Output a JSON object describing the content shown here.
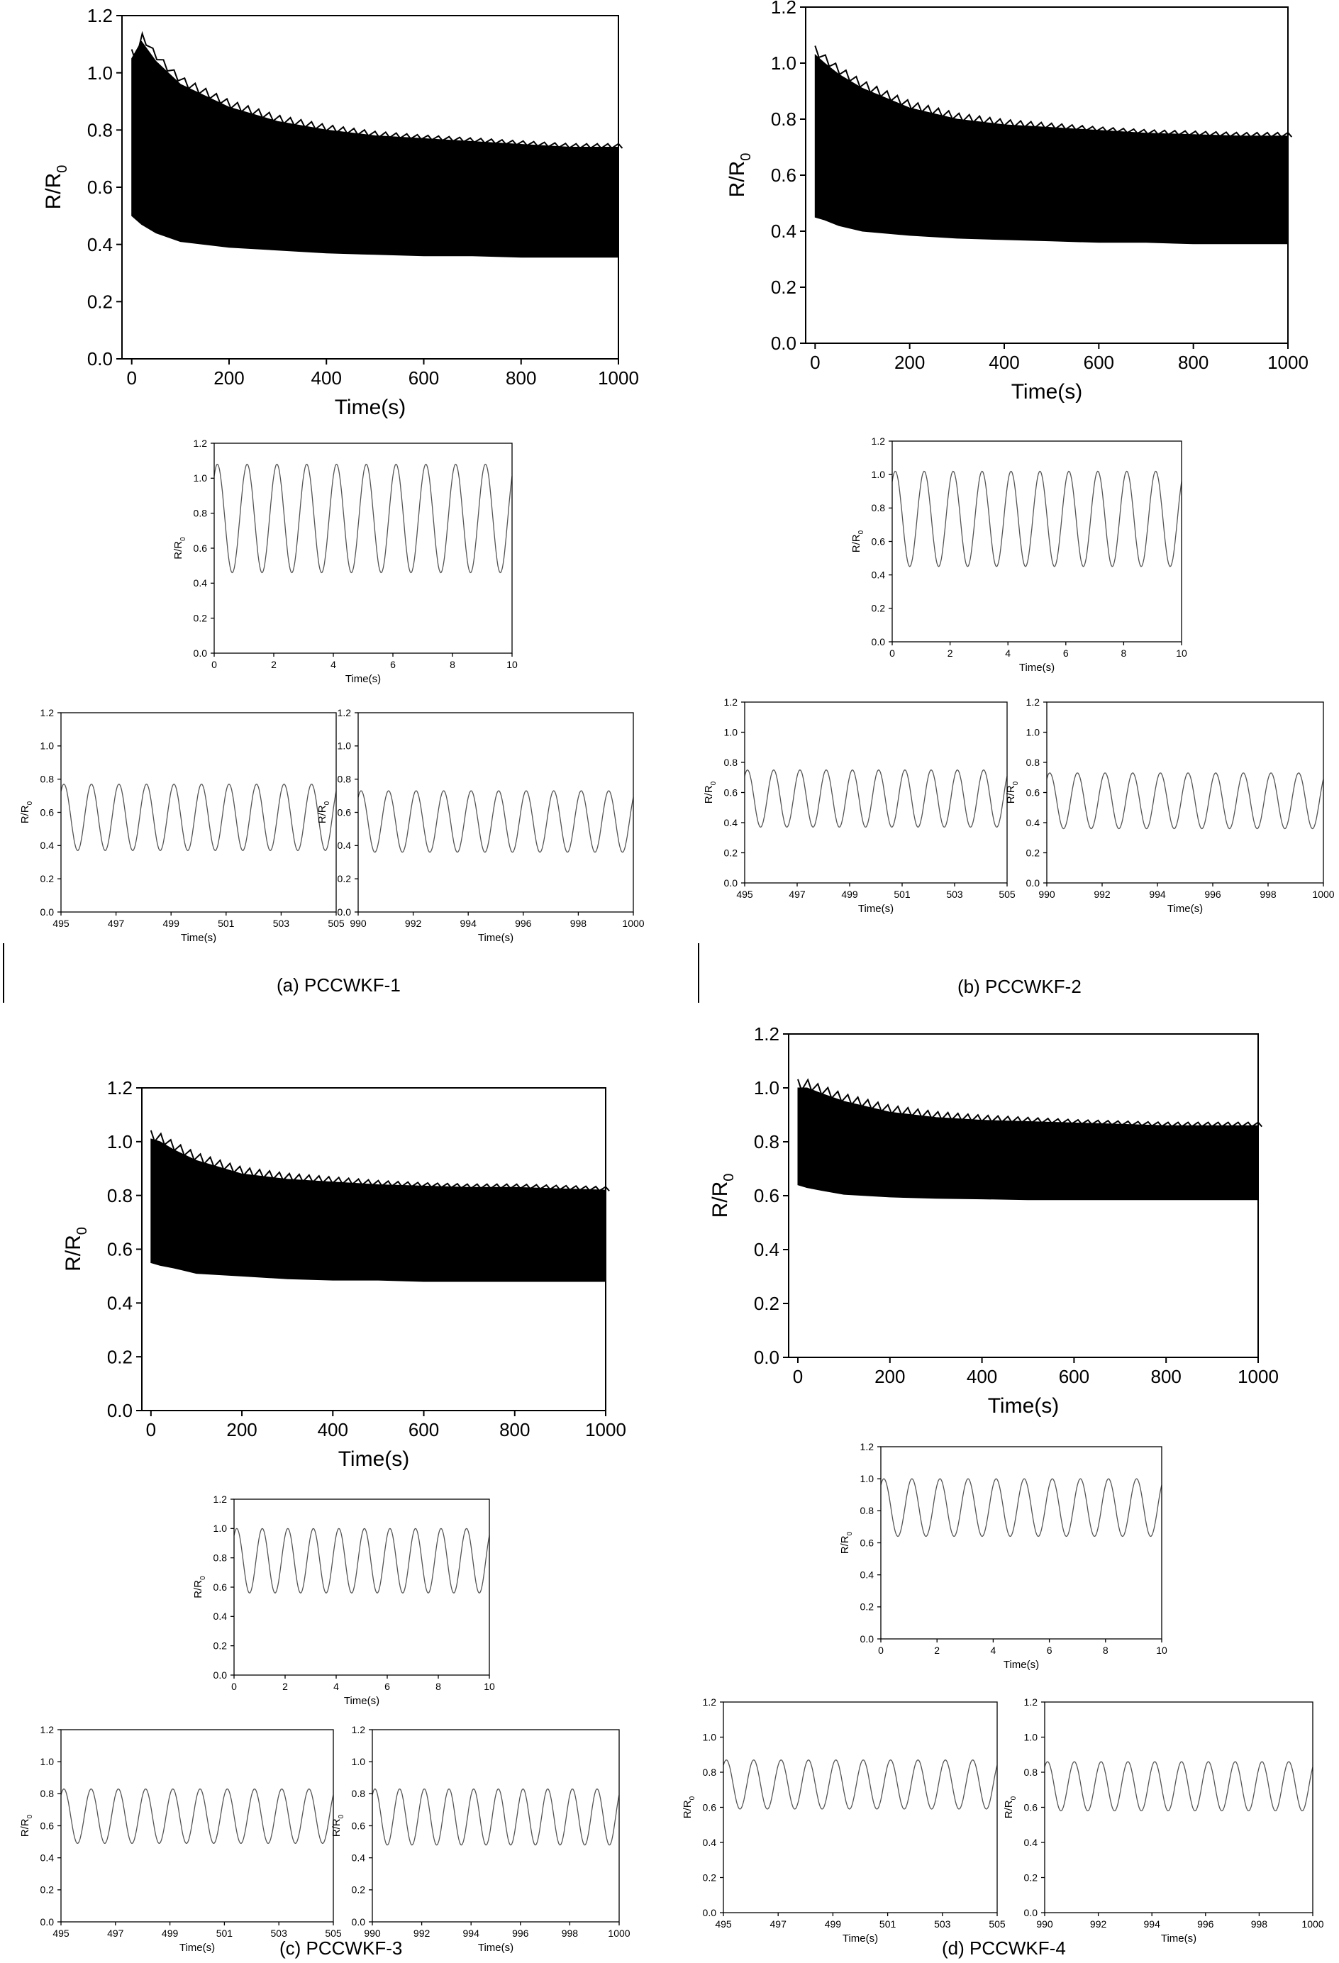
{
  "captions": {
    "a": "(a) PCCWKF-1",
    "b": "(b) PCCWKF-2",
    "c": "(c) PCCWKF-3",
    "d": "(d) PCCWKF-4"
  },
  "chart_data": [
    {
      "id": "a-main",
      "type": "line",
      "panel": "a",
      "fill_envelope": true,
      "xlabel": "Time(s)",
      "ylabel": "R/R0",
      "xlim": [
        -20,
        1000
      ],
      "ylim": [
        0,
        1.2
      ],
      "xticks": [
        0,
        200,
        400,
        600,
        800,
        1000
      ],
      "xtick_labels": [
        "0",
        "200",
        "400",
        "600",
        "800",
        "1000"
      ],
      "yticks": [
        0,
        0.2,
        0.4,
        0.6,
        0.8,
        1.0,
        1.2
      ],
      "ytick_labels": [
        "0.0",
        "0.2",
        "0.4",
        "0.6",
        "0.8",
        "1.0",
        "1.2"
      ],
      "x": [
        0,
        20,
        50,
        100,
        200,
        300,
        400,
        500,
        600,
        700,
        800,
        900,
        1000
      ],
      "series": [
        {
          "role": "upper",
          "values": [
            1.05,
            1.11,
            1.04,
            0.96,
            0.88,
            0.83,
            0.8,
            0.78,
            0.77,
            0.76,
            0.75,
            0.74,
            0.74
          ]
        },
        {
          "role": "lower",
          "values": [
            0.5,
            0.47,
            0.44,
            0.41,
            0.39,
            0.38,
            0.37,
            0.365,
            0.36,
            0.36,
            0.355,
            0.355,
            0.355
          ]
        }
      ]
    },
    {
      "id": "a-zoom-start",
      "type": "line",
      "panel": "a",
      "periodic": true,
      "xlabel": "Time(s)",
      "ylabel": "R/R0",
      "xlim": [
        0,
        10
      ],
      "ylim": [
        0,
        1.2
      ],
      "xticks": [
        0,
        2,
        4,
        6,
        8,
        10
      ],
      "xtick_labels": [
        "0",
        "2",
        "4",
        "6",
        "8",
        "10"
      ],
      "yticks": [
        0,
        0.2,
        0.4,
        0.6,
        0.8,
        1.0,
        1.2
      ],
      "ytick_labels": [
        "0.0",
        "0.2",
        "0.4",
        "0.6",
        "0.8",
        "1.0",
        "1.2"
      ],
      "cycles": 10,
      "min": 0.46,
      "max": 1.08
    },
    {
      "id": "a-zoom-mid",
      "type": "line",
      "panel": "a",
      "periodic": true,
      "xlabel": "Time(s)",
      "ylabel": "R/R0",
      "xlim": [
        495,
        505
      ],
      "ylim": [
        0,
        1.2
      ],
      "xticks": [
        495,
        497,
        499,
        501,
        503,
        505
      ],
      "xtick_labels": [
        "495",
        "497",
        "499",
        "501",
        "503",
        "505"
      ],
      "yticks": [
        0,
        0.2,
        0.4,
        0.6,
        0.8,
        1.0,
        1.2
      ],
      "ytick_labels": [
        "0.0",
        "0.2",
        "0.4",
        "0.6",
        "0.8",
        "1.0",
        "1.2"
      ],
      "cycles": 10,
      "min": 0.37,
      "max": 0.77
    },
    {
      "id": "a-zoom-end",
      "type": "line",
      "panel": "a",
      "periodic": true,
      "xlabel": "Time(s)",
      "ylabel": "R/R0",
      "xlim": [
        990,
        1000
      ],
      "ylim": [
        0,
        1.2
      ],
      "xticks": [
        990,
        992,
        994,
        996,
        998,
        1000
      ],
      "xtick_labels": [
        "990",
        "992",
        "994",
        "996",
        "998",
        "1000"
      ],
      "yticks": [
        0,
        0.2,
        0.4,
        0.6,
        0.8,
        1.0,
        1.2
      ],
      "ytick_labels": [
        "0.0",
        "0.2",
        "0.4",
        "0.6",
        "0.8",
        "1.0",
        "1.2"
      ],
      "cycles": 10,
      "min": 0.36,
      "max": 0.73
    },
    {
      "id": "b-main",
      "type": "line",
      "panel": "b",
      "fill_envelope": true,
      "xlabel": "Time(s)",
      "ylabel": "R/R0",
      "xlim": [
        -20,
        1000
      ],
      "ylim": [
        0,
        1.2
      ],
      "xticks": [
        0,
        200,
        400,
        600,
        800,
        1000
      ],
      "xtick_labels": [
        "0",
        "200",
        "400",
        "600",
        "800",
        "1000"
      ],
      "yticks": [
        0,
        0.2,
        0.4,
        0.6,
        0.8,
        1.0,
        1.2
      ],
      "ytick_labels": [
        "0.0",
        "0.2",
        "0.4",
        "0.6",
        "0.8",
        "1.0",
        "1.2"
      ],
      "x": [
        0,
        20,
        50,
        100,
        200,
        300,
        400,
        500,
        600,
        700,
        800,
        900,
        1000
      ],
      "series": [
        {
          "role": "upper",
          "values": [
            1.03,
            1.0,
            0.96,
            0.91,
            0.84,
            0.8,
            0.78,
            0.77,
            0.76,
            0.75,
            0.745,
            0.74,
            0.74
          ]
        },
        {
          "role": "lower",
          "values": [
            0.45,
            0.44,
            0.42,
            0.4,
            0.385,
            0.375,
            0.37,
            0.365,
            0.36,
            0.36,
            0.355,
            0.355,
            0.355
          ]
        }
      ]
    },
    {
      "id": "b-zoom-start",
      "type": "line",
      "panel": "b",
      "periodic": true,
      "xlabel": "Time(s)",
      "ylabel": "R/R0",
      "xlim": [
        0,
        10
      ],
      "ylim": [
        0,
        1.2
      ],
      "xticks": [
        0,
        2,
        4,
        6,
        8,
        10
      ],
      "xtick_labels": [
        "0",
        "2",
        "4",
        "6",
        "8",
        "10"
      ],
      "yticks": [
        0,
        0.2,
        0.4,
        0.6,
        0.8,
        1.0,
        1.2
      ],
      "ytick_labels": [
        "0.0",
        "0.2",
        "0.4",
        "0.6",
        "0.8",
        "1.0",
        "1.2"
      ],
      "cycles": 10,
      "min": 0.45,
      "max": 1.02
    },
    {
      "id": "b-zoom-mid",
      "type": "line",
      "panel": "b",
      "periodic": true,
      "xlabel": "Time(s)",
      "ylabel": "R/R0",
      "xlim": [
        495,
        505
      ],
      "ylim": [
        0,
        1.2
      ],
      "xticks": [
        495,
        497,
        499,
        501,
        503,
        505
      ],
      "xtick_labels": [
        "495",
        "497",
        "499",
        "501",
        "503",
        "505"
      ],
      "yticks": [
        0,
        0.2,
        0.4,
        0.6,
        0.8,
        1.0,
        1.2
      ],
      "ytick_labels": [
        "0.0",
        "0.2",
        "0.4",
        "0.6",
        "0.8",
        "1.0",
        "1.2"
      ],
      "cycles": 10,
      "min": 0.37,
      "max": 0.75
    },
    {
      "id": "b-zoom-end",
      "type": "line",
      "panel": "b",
      "periodic": true,
      "xlabel": "Time(s)",
      "ylabel": "R/R0",
      "xlim": [
        990,
        1000
      ],
      "ylim": [
        0,
        1.2
      ],
      "xticks": [
        990,
        992,
        994,
        996,
        998,
        1000
      ],
      "xtick_labels": [
        "990",
        "992",
        "994",
        "996",
        "998",
        "1000"
      ],
      "yticks": [
        0,
        0.2,
        0.4,
        0.6,
        0.8,
        1.0,
        1.2
      ],
      "ytick_labels": [
        "0.0",
        "0.2",
        "0.4",
        "0.6",
        "0.8",
        "1.0",
        "1.2"
      ],
      "cycles": 10,
      "min": 0.36,
      "max": 0.73
    },
    {
      "id": "c-main",
      "type": "line",
      "panel": "c",
      "fill_envelope": true,
      "xlabel": "Time(s)",
      "ylabel": "R/R0",
      "xlim": [
        -20,
        1000
      ],
      "ylim": [
        0,
        1.2
      ],
      "xticks": [
        0,
        200,
        400,
        600,
        800,
        1000
      ],
      "xtick_labels": [
        "0",
        "200",
        "400",
        "600",
        "800",
        "1000"
      ],
      "yticks": [
        0,
        0.2,
        0.4,
        0.6,
        0.8,
        1.0,
        1.2
      ],
      "ytick_labels": [
        "0.0",
        "0.2",
        "0.4",
        "0.6",
        "0.8",
        "1.0",
        "1.2"
      ],
      "x": [
        0,
        20,
        50,
        100,
        200,
        300,
        400,
        500,
        600,
        700,
        800,
        900,
        1000
      ],
      "series": [
        {
          "role": "upper",
          "values": [
            1.01,
            1.0,
            0.97,
            0.93,
            0.88,
            0.86,
            0.85,
            0.84,
            0.835,
            0.83,
            0.83,
            0.825,
            0.82
          ]
        },
        {
          "role": "lower",
          "values": [
            0.55,
            0.54,
            0.53,
            0.51,
            0.5,
            0.49,
            0.485,
            0.485,
            0.48,
            0.48,
            0.48,
            0.48,
            0.48
          ]
        }
      ]
    },
    {
      "id": "c-zoom-start",
      "type": "line",
      "panel": "c",
      "periodic": true,
      "xlabel": "Time(s)",
      "ylabel": "R/R0",
      "xlim": [
        0,
        10
      ],
      "ylim": [
        0,
        1.2
      ],
      "xticks": [
        0,
        2,
        4,
        6,
        8,
        10
      ],
      "xtick_labels": [
        "0",
        "2",
        "4",
        "6",
        "8",
        "10"
      ],
      "yticks": [
        0,
        0.2,
        0.4,
        0.6,
        0.8,
        1.0,
        1.2
      ],
      "ytick_labels": [
        "0.0",
        "0.2",
        "0.4",
        "0.6",
        "0.8",
        "1.0",
        "1.2"
      ],
      "cycles": 10,
      "min": 0.56,
      "max": 1.0
    },
    {
      "id": "c-zoom-mid",
      "type": "line",
      "panel": "c",
      "periodic": true,
      "xlabel": "Time(s)",
      "ylabel": "R/R0",
      "xlim": [
        495,
        505
      ],
      "ylim": [
        0,
        1.2
      ],
      "xticks": [
        495,
        497,
        499,
        501,
        503,
        505
      ],
      "xtick_labels": [
        "495",
        "497",
        "499",
        "501",
        "503",
        "505"
      ],
      "yticks": [
        0,
        0.2,
        0.4,
        0.6,
        0.8,
        1.0,
        1.2
      ],
      "ytick_labels": [
        "0.0",
        "0.2",
        "0.4",
        "0.6",
        "0.8",
        "1.0",
        "1.2"
      ],
      "cycles": 10,
      "min": 0.49,
      "max": 0.83
    },
    {
      "id": "c-zoom-end",
      "type": "line",
      "panel": "c",
      "periodic": true,
      "xlabel": "Time(s)",
      "ylabel": "R/R0",
      "xlim": [
        990,
        1000
      ],
      "ylim": [
        0,
        1.2
      ],
      "xticks": [
        990,
        992,
        994,
        996,
        998,
        1000
      ],
      "xtick_labels": [
        "990",
        "992",
        "994",
        "996",
        "998",
        "1000"
      ],
      "yticks": [
        0,
        0.2,
        0.4,
        0.6,
        0.8,
        1.0,
        1.2
      ],
      "ytick_labels": [
        "0.0",
        "0.2",
        "0.4",
        "0.6",
        "0.8",
        "1.0",
        "1.2"
      ],
      "cycles": 10,
      "min": 0.48,
      "max": 0.83
    },
    {
      "id": "d-main",
      "type": "line",
      "panel": "d",
      "fill_envelope": true,
      "xlabel": "Time(s)",
      "ylabel": "R/R0",
      "xlim": [
        -20,
        1000
      ],
      "ylim": [
        0,
        1.2
      ],
      "xticks": [
        0,
        200,
        400,
        600,
        800,
        1000
      ],
      "xtick_labels": [
        "0",
        "200",
        "400",
        "600",
        "800",
        "1000"
      ],
      "yticks": [
        0,
        0.2,
        0.4,
        0.6,
        0.8,
        1.0,
        1.2
      ],
      "ytick_labels": [
        "0.0",
        "0.2",
        "0.4",
        "0.6",
        "0.8",
        "1.0",
        "1.2"
      ],
      "x": [
        0,
        20,
        50,
        100,
        200,
        300,
        400,
        500,
        600,
        700,
        800,
        900,
        1000
      ],
      "series": [
        {
          "role": "upper",
          "values": [
            1.0,
            1.0,
            0.98,
            0.95,
            0.91,
            0.89,
            0.88,
            0.875,
            0.87,
            0.865,
            0.86,
            0.86,
            0.86
          ]
        },
        {
          "role": "lower",
          "values": [
            0.64,
            0.63,
            0.62,
            0.605,
            0.595,
            0.59,
            0.588,
            0.585,
            0.585,
            0.585,
            0.585,
            0.585,
            0.585
          ]
        }
      ]
    },
    {
      "id": "d-zoom-start",
      "type": "line",
      "panel": "d",
      "periodic": true,
      "xlabel": "Time(s)",
      "ylabel": "R/R0",
      "xlim": [
        0,
        10
      ],
      "ylim": [
        0,
        1.2
      ],
      "xticks": [
        0,
        2,
        4,
        6,
        8,
        10
      ],
      "xtick_labels": [
        "0",
        "2",
        "4",
        "6",
        "8",
        "10"
      ],
      "yticks": [
        0,
        0.2,
        0.4,
        0.6,
        0.8,
        1.0,
        1.2
      ],
      "ytick_labels": [
        "0.0",
        "0.2",
        "0.4",
        "0.6",
        "0.8",
        "1.0",
        "1.2"
      ],
      "cycles": 10,
      "min": 0.64,
      "max": 1.0
    },
    {
      "id": "d-zoom-mid",
      "type": "line",
      "panel": "d",
      "periodic": true,
      "xlabel": "Time(s)",
      "ylabel": "R/R0",
      "xlim": [
        495,
        505
      ],
      "ylim": [
        0,
        1.2
      ],
      "xticks": [
        495,
        497,
        499,
        501,
        503,
        505
      ],
      "xtick_labels": [
        "495",
        "497",
        "499",
        "501",
        "503",
        "505"
      ],
      "yticks": [
        0,
        0.2,
        0.4,
        0.6,
        0.8,
        1.0,
        1.2
      ],
      "ytick_labels": [
        "0.0",
        "0.2",
        "0.4",
        "0.6",
        "0.8",
        "1.0",
        "1.2"
      ],
      "cycles": 10,
      "min": 0.59,
      "max": 0.87
    },
    {
      "id": "d-zoom-end",
      "type": "line",
      "panel": "d",
      "periodic": true,
      "xlabel": "Time(s)",
      "ylabel": "R/R0",
      "xlim": [
        990,
        1000
      ],
      "ylim": [
        0,
        1.2
      ],
      "xticks": [
        990,
        992,
        994,
        996,
        998,
        1000
      ],
      "xtick_labels": [
        "990",
        "992",
        "994",
        "996",
        "998",
        "1000"
      ],
      "yticks": [
        0,
        0.2,
        0.4,
        0.6,
        0.8,
        1.0,
        1.2
      ],
      "ytick_labels": [
        "0.0",
        "0.2",
        "0.4",
        "0.6",
        "0.8",
        "1.0",
        "1.2"
      ],
      "cycles": 10,
      "min": 0.58,
      "max": 0.86
    }
  ]
}
